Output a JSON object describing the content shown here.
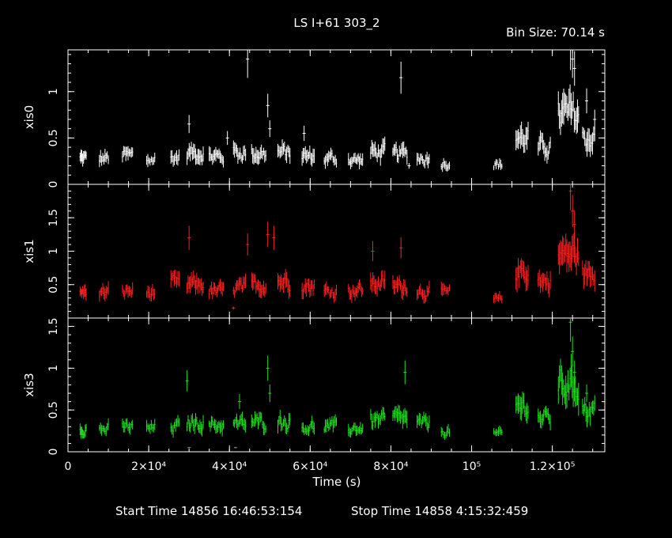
{
  "chart_data": {
    "type": "scatter",
    "title": "LS I+61 303_2",
    "bin_size_label": "Bin Size: 70.14 s",
    "xlabel": "Time (s)",
    "xlim": [
      0,
      133000
    ],
    "x_ticks": [
      {
        "value": 0,
        "label": "0"
      },
      {
        "value": 20000,
        "label": "2×10⁴"
      },
      {
        "value": 40000,
        "label": "4×10⁴"
      },
      {
        "value": 60000,
        "label": "6×10⁴"
      },
      {
        "value": 80000,
        "label": "8×10⁴"
      },
      {
        "value": 100000,
        "label": "10⁵"
      },
      {
        "value": 120000,
        "label": "1.2×10⁵"
      }
    ],
    "start_time_label": "Start Time 14856 16:46:53:154",
    "stop_time_label": "Stop Time 14858  4:15:32:459",
    "panels": [
      {
        "name": "xis0",
        "ylabel": "xis0",
        "color": "#ffffff",
        "ylim": [
          0,
          1.45
        ],
        "y_ticks": [
          {
            "value": 0,
            "label": "0"
          },
          {
            "value": 0.5,
            "label": "0.5"
          },
          {
            "value": 1,
            "label": "1"
          }
        ],
        "segments": [
          {
            "x0": 3000,
            "x1": 4500,
            "y": 0.28
          },
          {
            "x0": 7800,
            "x1": 10000,
            "y": 0.28
          },
          {
            "x0": 13500,
            "x1": 16000,
            "y": 0.31
          },
          {
            "x0": 19500,
            "x1": 21500,
            "y": 0.27
          },
          {
            "x0": 25500,
            "x1": 27500,
            "y": 0.29
          },
          {
            "x0": 29500,
            "x1": 33500,
            "y": 0.34
          },
          {
            "x0": 35000,
            "x1": 38500,
            "y": 0.3
          },
          {
            "x0": 41000,
            "x1": 44000,
            "y": 0.34
          },
          {
            "x0": 45500,
            "x1": 49000,
            "y": 0.33
          },
          {
            "x0": 52000,
            "x1": 55000,
            "y": 0.34
          },
          {
            "x0": 58000,
            "x1": 61000,
            "y": 0.3
          },
          {
            "x0": 63500,
            "x1": 66500,
            "y": 0.28
          },
          {
            "x0": 69500,
            "x1": 73000,
            "y": 0.26
          },
          {
            "x0": 75000,
            "x1": 78500,
            "y": 0.35
          },
          {
            "x0": 80500,
            "x1": 84000,
            "y": 0.33
          },
          {
            "x0": 86500,
            "x1": 89500,
            "y": 0.28
          },
          {
            "x0": 92500,
            "x1": 94500,
            "y": 0.23
          },
          {
            "x0": 105500,
            "x1": 107500,
            "y": 0.21
          },
          {
            "x0": 111000,
            "x1": 114000,
            "y": 0.5
          },
          {
            "x0": 116500,
            "x1": 119500,
            "y": 0.4
          },
          {
            "x0": 121500,
            "x1": 126500,
            "y": 0.75
          },
          {
            "x0": 127500,
            "x1": 130500,
            "y": 0.5
          }
        ],
        "spikes": [
          {
            "x": 30000,
            "y": 0.65
          },
          {
            "x": 39500,
            "y": 0.5
          },
          {
            "x": 44500,
            "y": 1.35
          },
          {
            "x": 49500,
            "y": 0.85
          },
          {
            "x": 50000,
            "y": 0.6
          },
          {
            "x": 58500,
            "y": 0.55
          },
          {
            "x": 82500,
            "y": 1.15
          },
          {
            "x": 84500,
            "y": 0.2
          },
          {
            "x": 124500,
            "y": 1.45
          },
          {
            "x": 125000,
            "y": 1.35
          },
          {
            "x": 125500,
            "y": 1.25
          },
          {
            "x": 128500,
            "y": 0.9
          },
          {
            "x": 130500,
            "y": 0.7
          }
        ]
      },
      {
        "name": "xis1",
        "ylabel": "xis1",
        "color": "#ff2020",
        "ylim": [
          0,
          2.0
        ],
        "y_ticks": [
          {
            "value": 0.5,
            "label": "0.5"
          },
          {
            "value": 1,
            "label": "1"
          },
          {
            "value": 1.5,
            "label": "1.5"
          }
        ],
        "segments": [
          {
            "x0": 3000,
            "x1": 4500,
            "y": 0.38
          },
          {
            "x0": 7800,
            "x1": 10000,
            "y": 0.38
          },
          {
            "x0": 13500,
            "x1": 16000,
            "y": 0.4
          },
          {
            "x0": 19500,
            "x1": 21500,
            "y": 0.38
          },
          {
            "x0": 25500,
            "x1": 27500,
            "y": 0.5
          },
          {
            "x0": 29500,
            "x1": 33500,
            "y": 0.5
          },
          {
            "x0": 35000,
            "x1": 38500,
            "y": 0.4
          },
          {
            "x0": 41000,
            "x1": 44000,
            "y": 0.45
          },
          {
            "x0": 45500,
            "x1": 49000,
            "y": 0.5
          },
          {
            "x0": 52000,
            "x1": 55000,
            "y": 0.55
          },
          {
            "x0": 58000,
            "x1": 61000,
            "y": 0.48
          },
          {
            "x0": 63500,
            "x1": 66500,
            "y": 0.4
          },
          {
            "x0": 69500,
            "x1": 73000,
            "y": 0.42
          },
          {
            "x0": 75000,
            "x1": 78500,
            "y": 0.52
          },
          {
            "x0": 80500,
            "x1": 84000,
            "y": 0.48
          },
          {
            "x0": 86500,
            "x1": 89500,
            "y": 0.4
          },
          {
            "x0": 92500,
            "x1": 94500,
            "y": 0.38
          },
          {
            "x0": 105500,
            "x1": 107500,
            "y": 0.28
          },
          {
            "x0": 111000,
            "x1": 114000,
            "y": 0.7
          },
          {
            "x0": 116500,
            "x1": 119500,
            "y": 0.55
          },
          {
            "x0": 121500,
            "x1": 126500,
            "y": 0.95
          },
          {
            "x0": 127500,
            "x1": 130500,
            "y": 0.65
          }
        ],
        "spikes": [
          {
            "x": 30000,
            "y": 1.2
          },
          {
            "x": 41000,
            "y": 0.15
          },
          {
            "x": 44500,
            "y": 1.1
          },
          {
            "x": 49500,
            "y": 1.25
          },
          {
            "x": 51000,
            "y": 1.2
          },
          {
            "x": 75500,
            "y": 1.0
          },
          {
            "x": 82500,
            "y": 1.05
          },
          {
            "x": 124500,
            "y": 1.9
          },
          {
            "x": 125000,
            "y": 1.6
          },
          {
            "x": 125500,
            "y": 1.4
          }
        ]
      },
      {
        "name": "xis3",
        "ylabel": "xis3",
        "color": "#20e020",
        "ylim": [
          0,
          1.6
        ],
        "y_ticks": [
          {
            "value": 0,
            "label": "0"
          },
          {
            "value": 0.5,
            "label": "0.5"
          },
          {
            "value": 1,
            "label": "1"
          },
          {
            "value": 1.5,
            "label": "1.5"
          }
        ],
        "segments": [
          {
            "x0": 3000,
            "x1": 4500,
            "y": 0.28
          },
          {
            "x0": 7800,
            "x1": 10000,
            "y": 0.27
          },
          {
            "x0": 13500,
            "x1": 16000,
            "y": 0.3
          },
          {
            "x0": 19500,
            "x1": 21500,
            "y": 0.28
          },
          {
            "x0": 25500,
            "x1": 27500,
            "y": 0.3
          },
          {
            "x0": 29500,
            "x1": 33500,
            "y": 0.35
          },
          {
            "x0": 35000,
            "x1": 38500,
            "y": 0.32
          },
          {
            "x0": 41000,
            "x1": 44000,
            "y": 0.33
          },
          {
            "x0": 45500,
            "x1": 49000,
            "y": 0.35
          },
          {
            "x0": 52000,
            "x1": 55000,
            "y": 0.36
          },
          {
            "x0": 58000,
            "x1": 61000,
            "y": 0.3
          },
          {
            "x0": 63500,
            "x1": 66500,
            "y": 0.3
          },
          {
            "x0": 69500,
            "x1": 73000,
            "y": 0.28
          },
          {
            "x0": 75000,
            "x1": 78500,
            "y": 0.38
          },
          {
            "x0": 80500,
            "x1": 84000,
            "y": 0.4
          },
          {
            "x0": 86500,
            "x1": 89500,
            "y": 0.33
          },
          {
            "x0": 92500,
            "x1": 94500,
            "y": 0.25
          },
          {
            "x0": 105500,
            "x1": 107500,
            "y": 0.21
          },
          {
            "x0": 111000,
            "x1": 114000,
            "y": 0.55
          },
          {
            "x0": 116500,
            "x1": 119500,
            "y": 0.4
          },
          {
            "x0": 121500,
            "x1": 126500,
            "y": 0.8
          },
          {
            "x0": 127500,
            "x1": 130500,
            "y": 0.5
          }
        ],
        "spikes": [
          {
            "x": 29500,
            "y": 0.85
          },
          {
            "x": 30000,
            "y": 0.05
          },
          {
            "x": 41500,
            "y": 0.05
          },
          {
            "x": 42500,
            "y": 0.6
          },
          {
            "x": 49500,
            "y": 1.0
          },
          {
            "x": 50000,
            "y": 0.7
          },
          {
            "x": 83500,
            "y": 0.95
          },
          {
            "x": 124500,
            "y": 1.55
          },
          {
            "x": 125000,
            "y": 1.2
          },
          {
            "x": 125500,
            "y": 0.95
          },
          {
            "x": 128500,
            "y": 0.7
          }
        ]
      }
    ]
  }
}
